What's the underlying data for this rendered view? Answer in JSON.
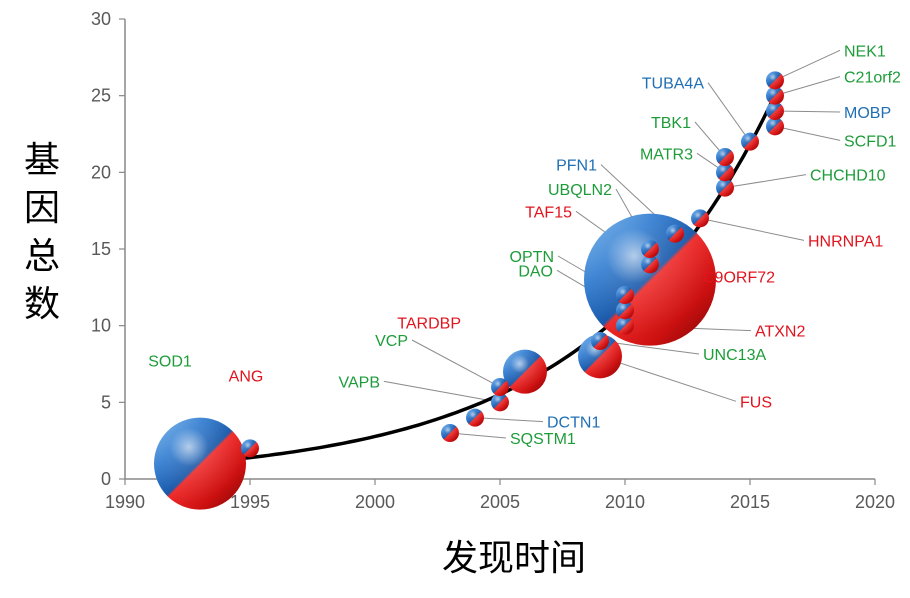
{
  "chart_data": {
    "type": "scatter",
    "xlabel": "发现时间",
    "ylabel": "基因总数",
    "xlim": [
      1990,
      2020
    ],
    "ylim": [
      0,
      30
    ],
    "xticks": [
      "1990",
      "1995",
      "2000",
      "2005",
      "2010",
      "2015",
      "2020"
    ],
    "yticks": [
      "0",
      "5",
      "10",
      "15",
      "20",
      "25",
      "30"
    ],
    "colors": {
      "green": "#1e9c3a",
      "red": "#e0141e",
      "blue": "#1f6fb5",
      "curve": "#000000",
      "axis": "#888888",
      "tick_text": "#595959"
    },
    "points": [
      {
        "name": "SOD1",
        "x": 1993,
        "y": 1,
        "size": "large",
        "color": "green"
      },
      {
        "name": "ANG",
        "x": 1995,
        "y": 2,
        "size": "small",
        "color": "red"
      },
      {
        "name": "SQSTM1",
        "x": 2003,
        "y": 3,
        "size": "small",
        "color": "green"
      },
      {
        "name": "DCTN1",
        "x": 2004,
        "y": 4,
        "size": "small",
        "color": "blue"
      },
      {
        "name": "VAPB",
        "x": 2005,
        "y": 5,
        "size": "small",
        "color": "green"
      },
      {
        "name": "VCP",
        "x": 2005,
        "y": 6,
        "size": "small",
        "color": "green"
      },
      {
        "name": "TARDBP",
        "x": 2006,
        "y": 7,
        "size": "medium",
        "color": "red"
      },
      {
        "name": "FUS",
        "x": 2009,
        "y": 8,
        "size": "medium",
        "color": "red"
      },
      {
        "name": "UNC13A",
        "x": 2009,
        "y": 9,
        "size": "small",
        "color": "green"
      },
      {
        "name": "ATXN2",
        "x": 2010,
        "y": 10,
        "size": "small",
        "color": "red"
      },
      {
        "name": "DAO",
        "x": 2010,
        "y": 11,
        "size": "small",
        "color": "green"
      },
      {
        "name": "OPTN",
        "x": 2010,
        "y": 12,
        "size": "small",
        "color": "green"
      },
      {
        "name": "C9ORF72",
        "x": 2011,
        "y": 13,
        "size": "xlarge",
        "color": "red"
      },
      {
        "name": "TAF15",
        "x": 2011,
        "y": 14,
        "size": "small",
        "color": "red"
      },
      {
        "name": "UBQLN2",
        "x": 2011,
        "y": 15,
        "size": "small",
        "color": "green"
      },
      {
        "name": "PFN1",
        "x": 2012,
        "y": 16,
        "size": "small",
        "color": "blue"
      },
      {
        "name": "HNRNPA1",
        "x": 2013,
        "y": 17,
        "size": "small",
        "color": "red"
      },
      {
        "name": "CHCHD10",
        "x": 2014,
        "y": 19,
        "size": "small",
        "color": "green"
      },
      {
        "name": "MATR3",
        "x": 2014,
        "y": 20,
        "size": "small",
        "color": "green"
      },
      {
        "name": "TBK1",
        "x": 2014,
        "y": 21,
        "size": "small",
        "color": "green"
      },
      {
        "name": "TUBA4A",
        "x": 2015,
        "y": 22,
        "size": "small",
        "color": "blue"
      },
      {
        "name": "SCFD1",
        "x": 2016,
        "y": 23,
        "size": "small",
        "color": "green"
      },
      {
        "name": "MOBP",
        "x": 2016,
        "y": 24,
        "size": "small",
        "color": "blue"
      },
      {
        "name": "C21orf2",
        "x": 2016,
        "y": 25,
        "size": "small",
        "color": "green"
      },
      {
        "name": "NEK1",
        "x": 2016,
        "y": 26,
        "size": "small",
        "color": "green"
      }
    ]
  }
}
